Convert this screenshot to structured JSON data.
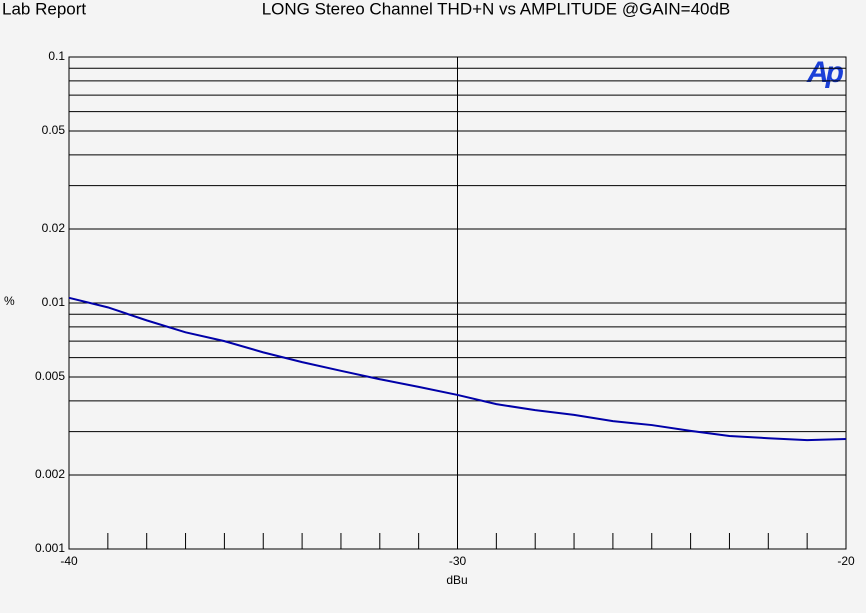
{
  "chart_data": {
    "type": "line",
    "header": "Lab Report",
    "title": "LONG Stereo Channel THD+N vs AMPLITUDE @GAIN=40dB",
    "logo": "Ap",
    "xlabel": "dBu",
    "ylabel": "%",
    "x": [
      -40,
      -39,
      -38,
      -37,
      -36,
      -35,
      -34,
      -33,
      -32,
      -31,
      -30,
      -29,
      -28,
      -27,
      -26,
      -25,
      -24,
      -23,
      -22,
      -21,
      -20
    ],
    "series": [
      {
        "color": "#0000a8",
        "values": [
          0.0105,
          0.0096,
          0.0085,
          0.0076,
          0.007,
          0.0063,
          0.00575,
          0.0053,
          0.0049,
          0.00456,
          0.00423,
          0.00388,
          0.00367,
          0.00351,
          0.00331,
          0.00319,
          0.00302,
          0.00288,
          0.00282,
          0.00277,
          0.0028
        ]
      }
    ],
    "xlim": [
      -40,
      -20
    ],
    "xticks": [
      -40,
      -30,
      -20
    ],
    "x_minor_ticks": [
      -39,
      -38,
      -37,
      -36,
      -35,
      -34,
      -33,
      -32,
      -31,
      -29,
      -28,
      -27,
      -26,
      -25,
      -24,
      -23,
      -22,
      -21
    ],
    "ylim": [
      0.001,
      0.1
    ],
    "yscale": "log",
    "yticks": [
      0.001,
      0.002,
      0.005,
      0.01,
      0.02,
      0.05,
      0.1
    ],
    "y_minor_ticks": [
      0.003,
      0.004,
      0.006,
      0.007,
      0.008,
      0.009,
      0.03,
      0.04,
      0.06,
      0.07,
      0.08,
      0.09
    ],
    "grid": true
  }
}
